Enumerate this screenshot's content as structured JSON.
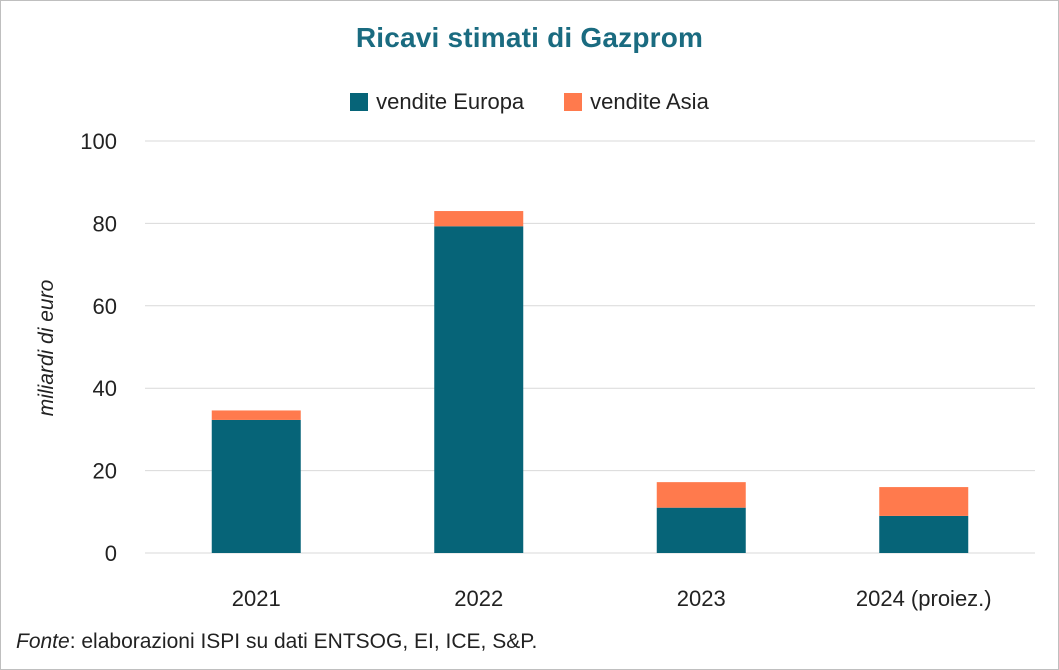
{
  "chart_data": {
    "type": "bar",
    "stacked": true,
    "title": "Ricavi stimati di Gazprom",
    "ylabel": "miliardi di euro",
    "xlabel": "",
    "categories": [
      "2021",
      "2022",
      "2023",
      "2024 (proiez.)"
    ],
    "series": [
      {
        "name": "vendite Europa",
        "values": [
          32.3,
          79.3,
          11.0,
          9.0
        ],
        "color": "#066478"
      },
      {
        "name": "vendite Asia",
        "values": [
          2.3,
          3.7,
          6.2,
          7.0
        ],
        "color": "#ff7a4d"
      }
    ],
    "ylim": [
      0,
      100
    ],
    "yticks": [
      "0",
      "20",
      "40",
      "60",
      "80",
      "100"
    ],
    "grid": true,
    "legend_position": "top"
  },
  "source": {
    "label": "Fonte",
    "text": ": elaborazioni ISPI su dati ENTSOG, EI, ICE, S&P."
  }
}
